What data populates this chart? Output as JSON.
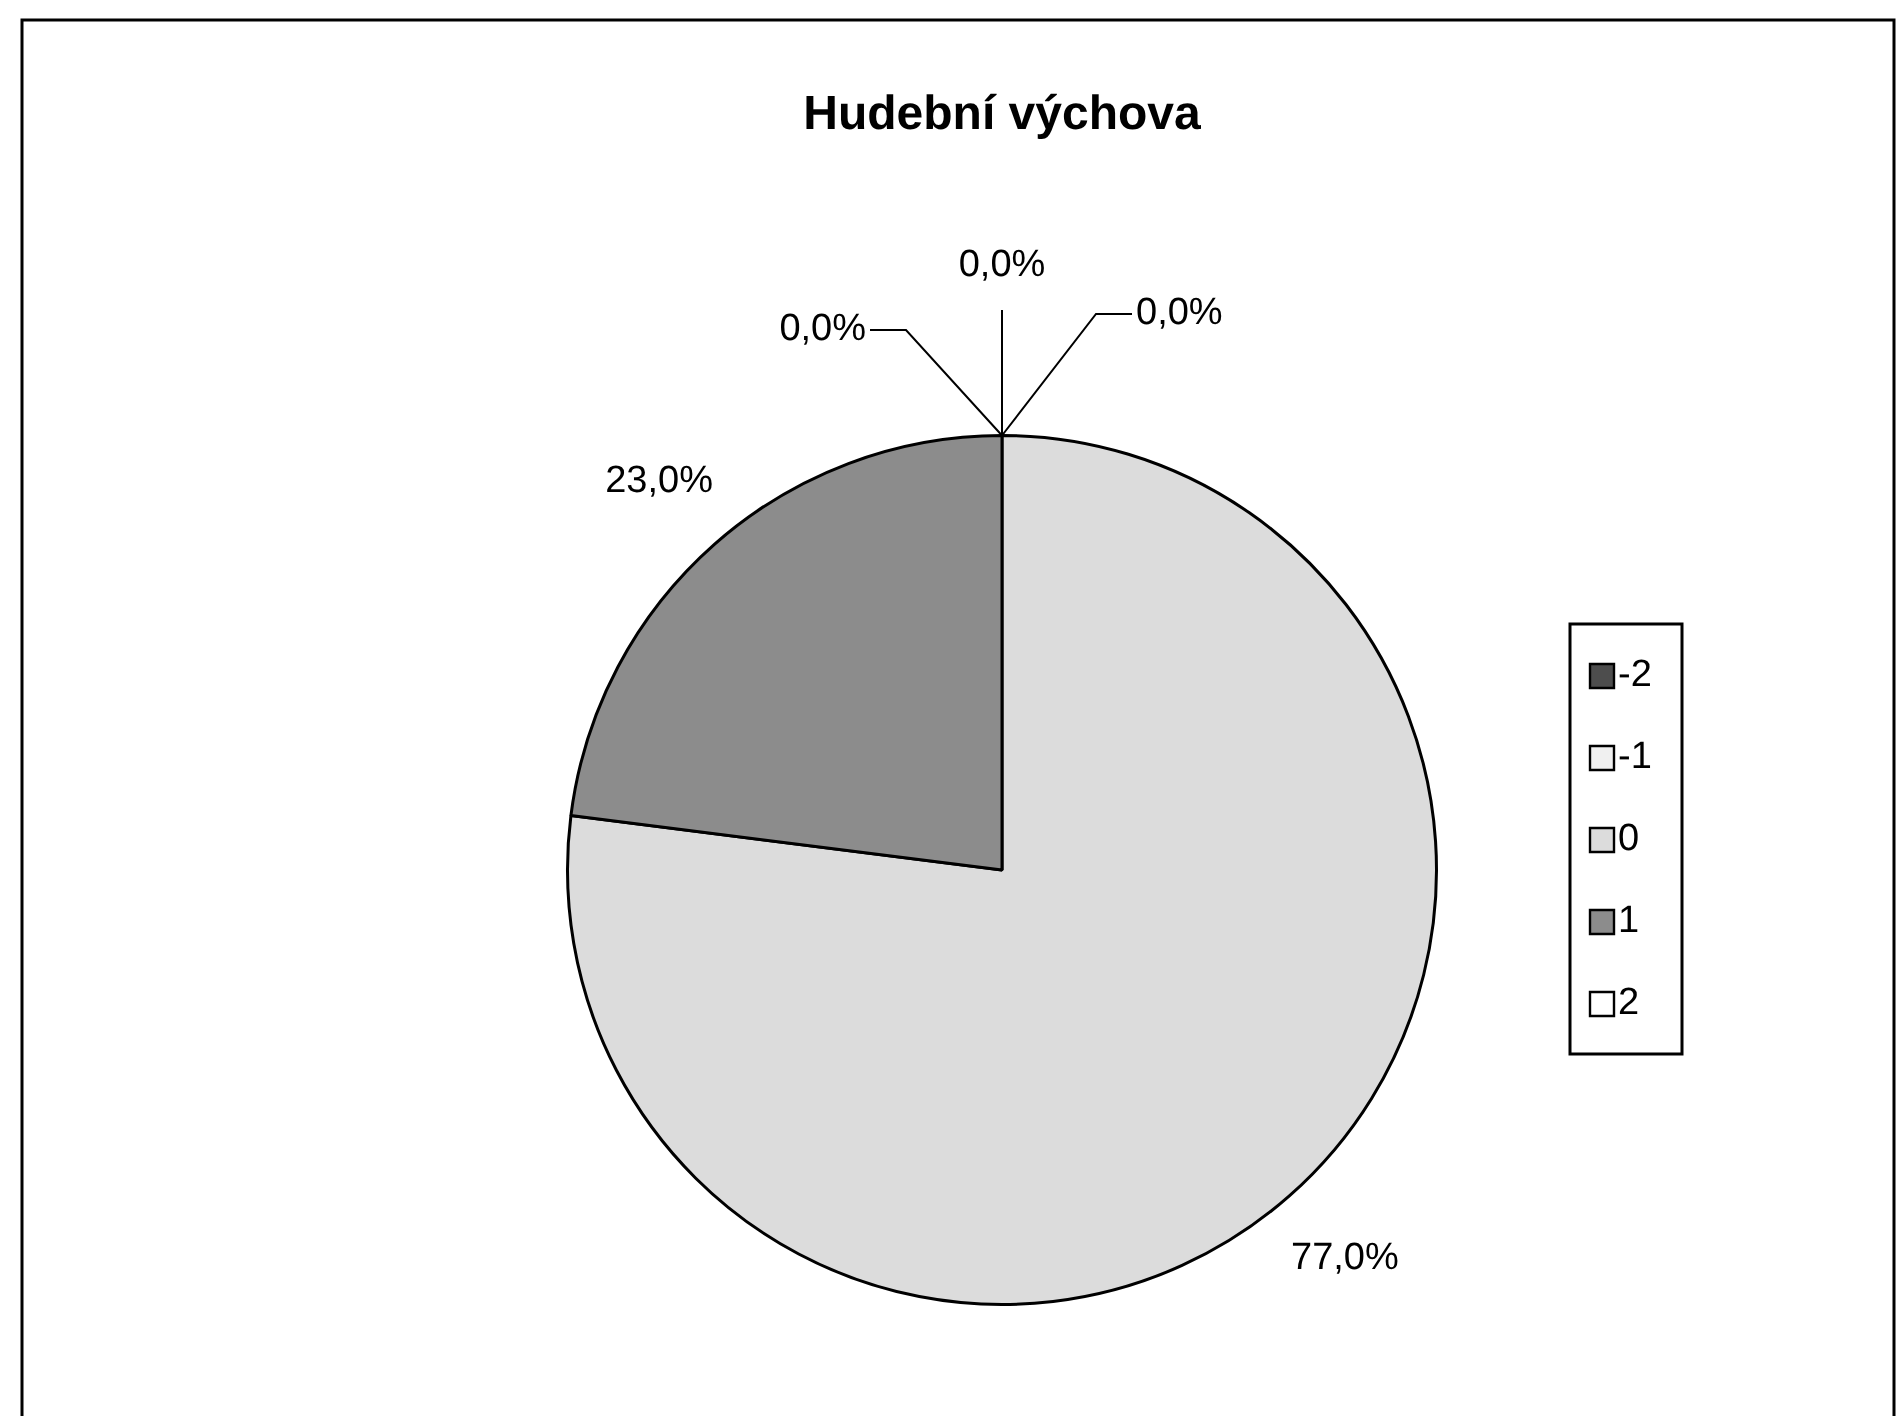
{
  "chart_data": {
    "type": "pie",
    "title": "Hudební výchova",
    "categories": [
      "-2",
      "-1",
      "0",
      "1",
      "2"
    ],
    "values": [
      0,
      0,
      77,
      23,
      0
    ],
    "colors": [
      "#4d4d4d",
      "#f0f0f0",
      "#dcdcdc",
      "#8c8c8c",
      "#ffffff"
    ],
    "value_labels": [
      "0,0%",
      "0,0%",
      "77,0%",
      "23,0%",
      "0,0%"
    ],
    "legend": "right"
  }
}
